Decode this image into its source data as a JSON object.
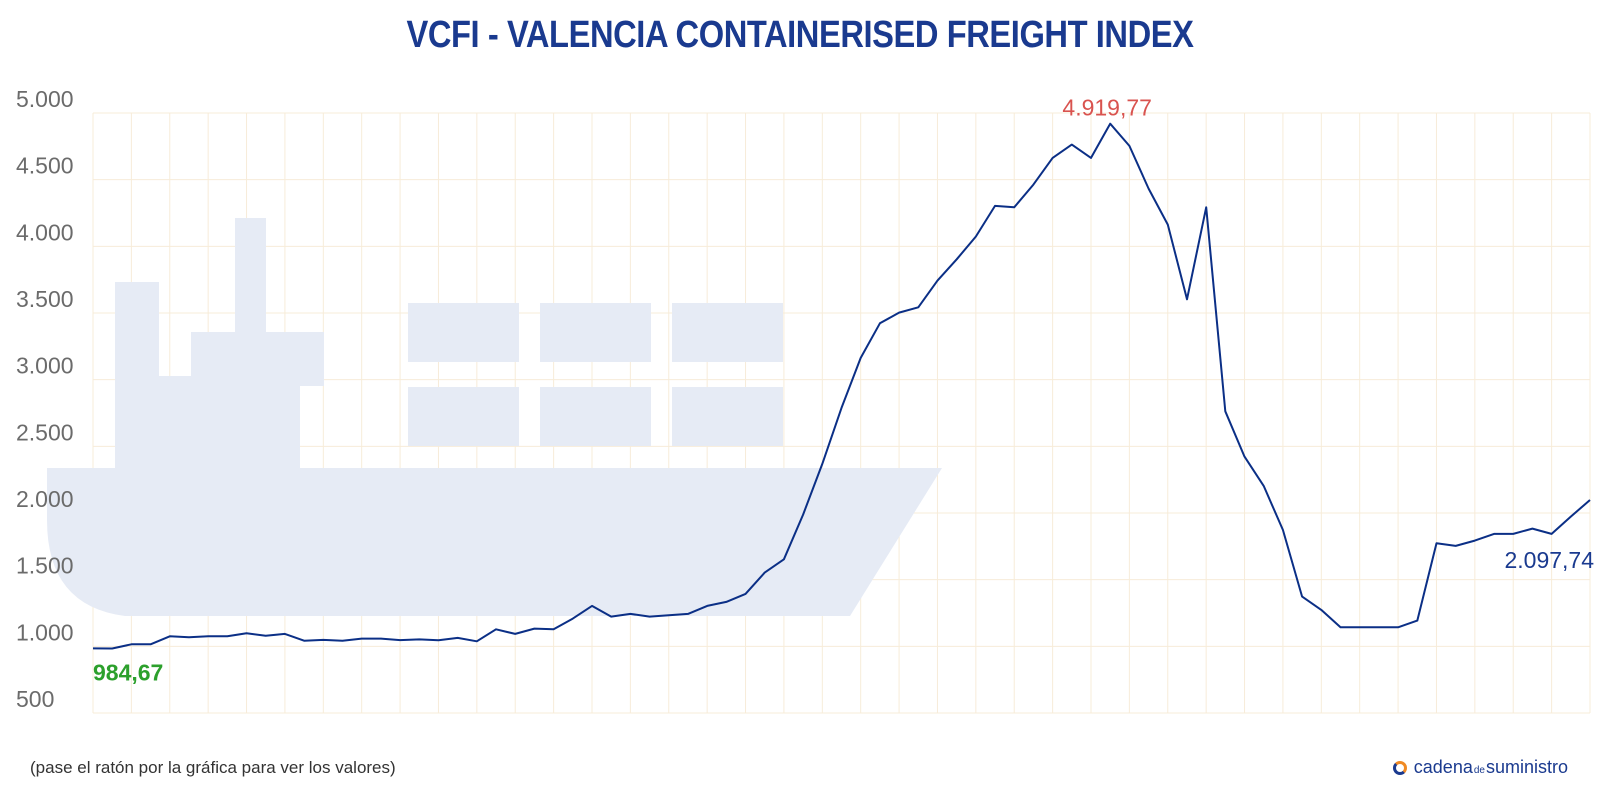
{
  "colors": {
    "title": "#1a3a8f",
    "line": "#0b2f86",
    "max": "#d9534f",
    "min": "#2ca02c",
    "last": "#1a3a8f",
    "ship": "#e6ebf5",
    "grid": "#f7ecd9"
  },
  "note": "(pase el ratón por la gráfica para ver los valores)",
  "brand": {
    "icon": "cadena-logo-icon",
    "part1": "cadena",
    "part2": "de",
    "part3": "suministro"
  },
  "chart_data": {
    "type": "line",
    "title": "VCFI - VALENCIA CONTAINERISED FREIGHT INDEX",
    "xlabel": "",
    "ylabel": "",
    "ylim": [
      500,
      5000
    ],
    "yticks": [
      "5.000",
      "4.500",
      "4.000",
      "3.500",
      "3.000",
      "2.500",
      "2.000",
      "1.500",
      "1.000",
      "500"
    ],
    "ytick_values": [
      5000,
      4500,
      4000,
      3500,
      3000,
      2500,
      2000,
      1500,
      1000,
      500
    ],
    "grid": true,
    "series": [
      {
        "values": [
          984.67,
          984,
          1015,
          1015,
          1075,
          1068,
          1075,
          1075,
          1098,
          1080,
          1093,
          1042,
          1048,
          1042,
          1058,
          1058,
          1047,
          1052,
          1046,
          1063,
          1038,
          1128,
          1093,
          1133,
          1128,
          1208,
          1303,
          1223,
          1243,
          1223,
          1233,
          1243,
          1303,
          1333,
          1393,
          1553,
          1653,
          1988,
          2368,
          2788,
          3163,
          3423,
          3503,
          3543,
          3743,
          3903,
          4073,
          4303,
          4293,
          4463,
          4663,
          4763,
          4663,
          4919.77,
          4753,
          4433,
          4163,
          3603,
          4293,
          2763,
          2423,
          2203,
          1873,
          1373,
          1273,
          1143,
          1143,
          1143,
          1143,
          1193,
          1773,
          1753,
          1793,
          1843,
          1843,
          1883,
          1843,
          1973,
          2097.74
        ]
      }
    ],
    "annotations": {
      "max_label": "4.919,77",
      "min_label": "984,67",
      "last_label": "2.097,74"
    }
  }
}
